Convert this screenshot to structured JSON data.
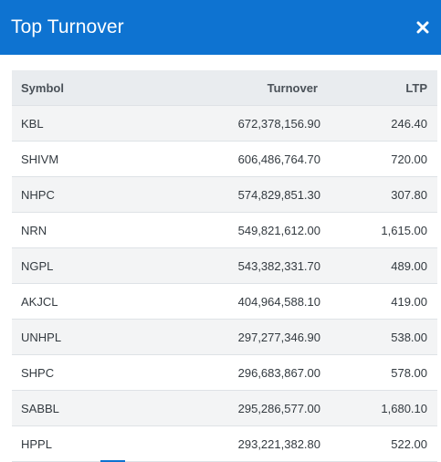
{
  "header": {
    "title": "Top Turnover",
    "close_icon": "close-icon"
  },
  "table": {
    "columns": [
      "Symbol",
      "Turnover",
      "LTP"
    ],
    "rows": [
      {
        "symbol": "KBL",
        "turnover": "672,378,156.90",
        "ltp": "246.40"
      },
      {
        "symbol": "SHIVM",
        "turnover": "606,486,764.70",
        "ltp": "720.00"
      },
      {
        "symbol": "NHPC",
        "turnover": "574,829,851.30",
        "ltp": "307.80"
      },
      {
        "symbol": "NRN",
        "turnover": "549,821,612.00",
        "ltp": "1,615.00"
      },
      {
        "symbol": "NGPL",
        "turnover": "543,382,331.70",
        "ltp": "489.00"
      },
      {
        "symbol": "AKJCL",
        "turnover": "404,964,588.10",
        "ltp": "419.00"
      },
      {
        "symbol": "UNHPL",
        "turnover": "297,277,346.90",
        "ltp": "538.00"
      },
      {
        "symbol": "SHPC",
        "turnover": "296,683,867.00",
        "ltp": "578.00"
      },
      {
        "symbol": "SABBL",
        "turnover": "295,286,577.00",
        "ltp": "1,680.10"
      },
      {
        "symbol": "HPPL",
        "turnover": "293,221,382.80",
        "ltp": "522.00"
      }
    ]
  },
  "colors": {
    "header_bg": "#0e73d1",
    "header_text": "#ffffff",
    "table_header_bg": "#e9ecef",
    "row_stripe": "#f3f4f5"
  }
}
